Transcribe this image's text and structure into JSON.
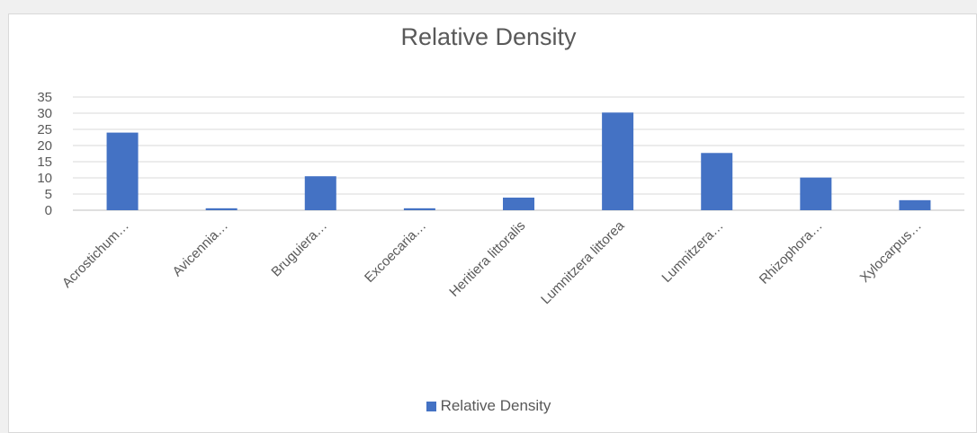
{
  "chart_data": {
    "type": "bar",
    "title": "Relative Density",
    "categories": [
      "Acrostichum…",
      "Avicennia…",
      "Bruguiera…",
      "Excoecaria…",
      "Heritiera littoralis",
      "Lumnitzera littorea",
      "Lumnitzera…",
      "Rhizophora…",
      "Xylocarpus…"
    ],
    "series": [
      {
        "name": "Relative Density",
        "values": [
          24,
          0.6,
          10.5,
          0.6,
          3.9,
          30.2,
          17.7,
          10.1,
          3.1
        ]
      }
    ],
    "ylim": [
      0,
      35
    ],
    "yticks": [
      0,
      5,
      10,
      15,
      20,
      25,
      30,
      35
    ],
    "grid": true,
    "legend_position": "bottom",
    "bar_color": "#4472c4"
  }
}
